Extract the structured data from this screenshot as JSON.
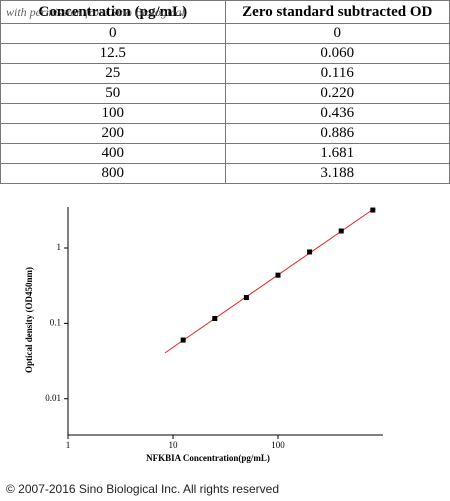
{
  "table": {
    "header": [
      "Concentration (pg/mL)",
      "Zero standard subtracted OD"
    ],
    "rows": [
      [
        "0",
        "0"
      ],
      [
        "12.5",
        "0.060"
      ],
      [
        "25",
        "0.116"
      ],
      [
        "50",
        "0.220"
      ],
      [
        "100",
        "0.436"
      ],
      [
        "200",
        "0.886"
      ],
      [
        "400",
        "1.681"
      ],
      [
        "800",
        "3.188"
      ]
    ]
  },
  "watermark": "with permission from Sino Biological",
  "chart_data": {
    "type": "scatter",
    "x_label": "NFKBIA Concentration(pg/mL)",
    "y_label": "Optical density (OD450nm)",
    "x": [
      12.5,
      25,
      50,
      100,
      200,
      400,
      800
    ],
    "values": [
      0.06,
      0.116,
      0.22,
      0.436,
      0.886,
      1.681,
      3.188
    ],
    "color": "#000000",
    "fit_color": "#e8231f",
    "log_x": true,
    "log_y": true,
    "xlim": [
      1,
      1000
    ],
    "xticks": [
      1,
      10,
      100
    ],
    "ylim": [
      0.0033,
      3.5
    ],
    "yticks": [
      0.01,
      0.1,
      1
    ]
  },
  "footer": "© 2007-2016 Sino Biological Inc. All rights reserved"
}
